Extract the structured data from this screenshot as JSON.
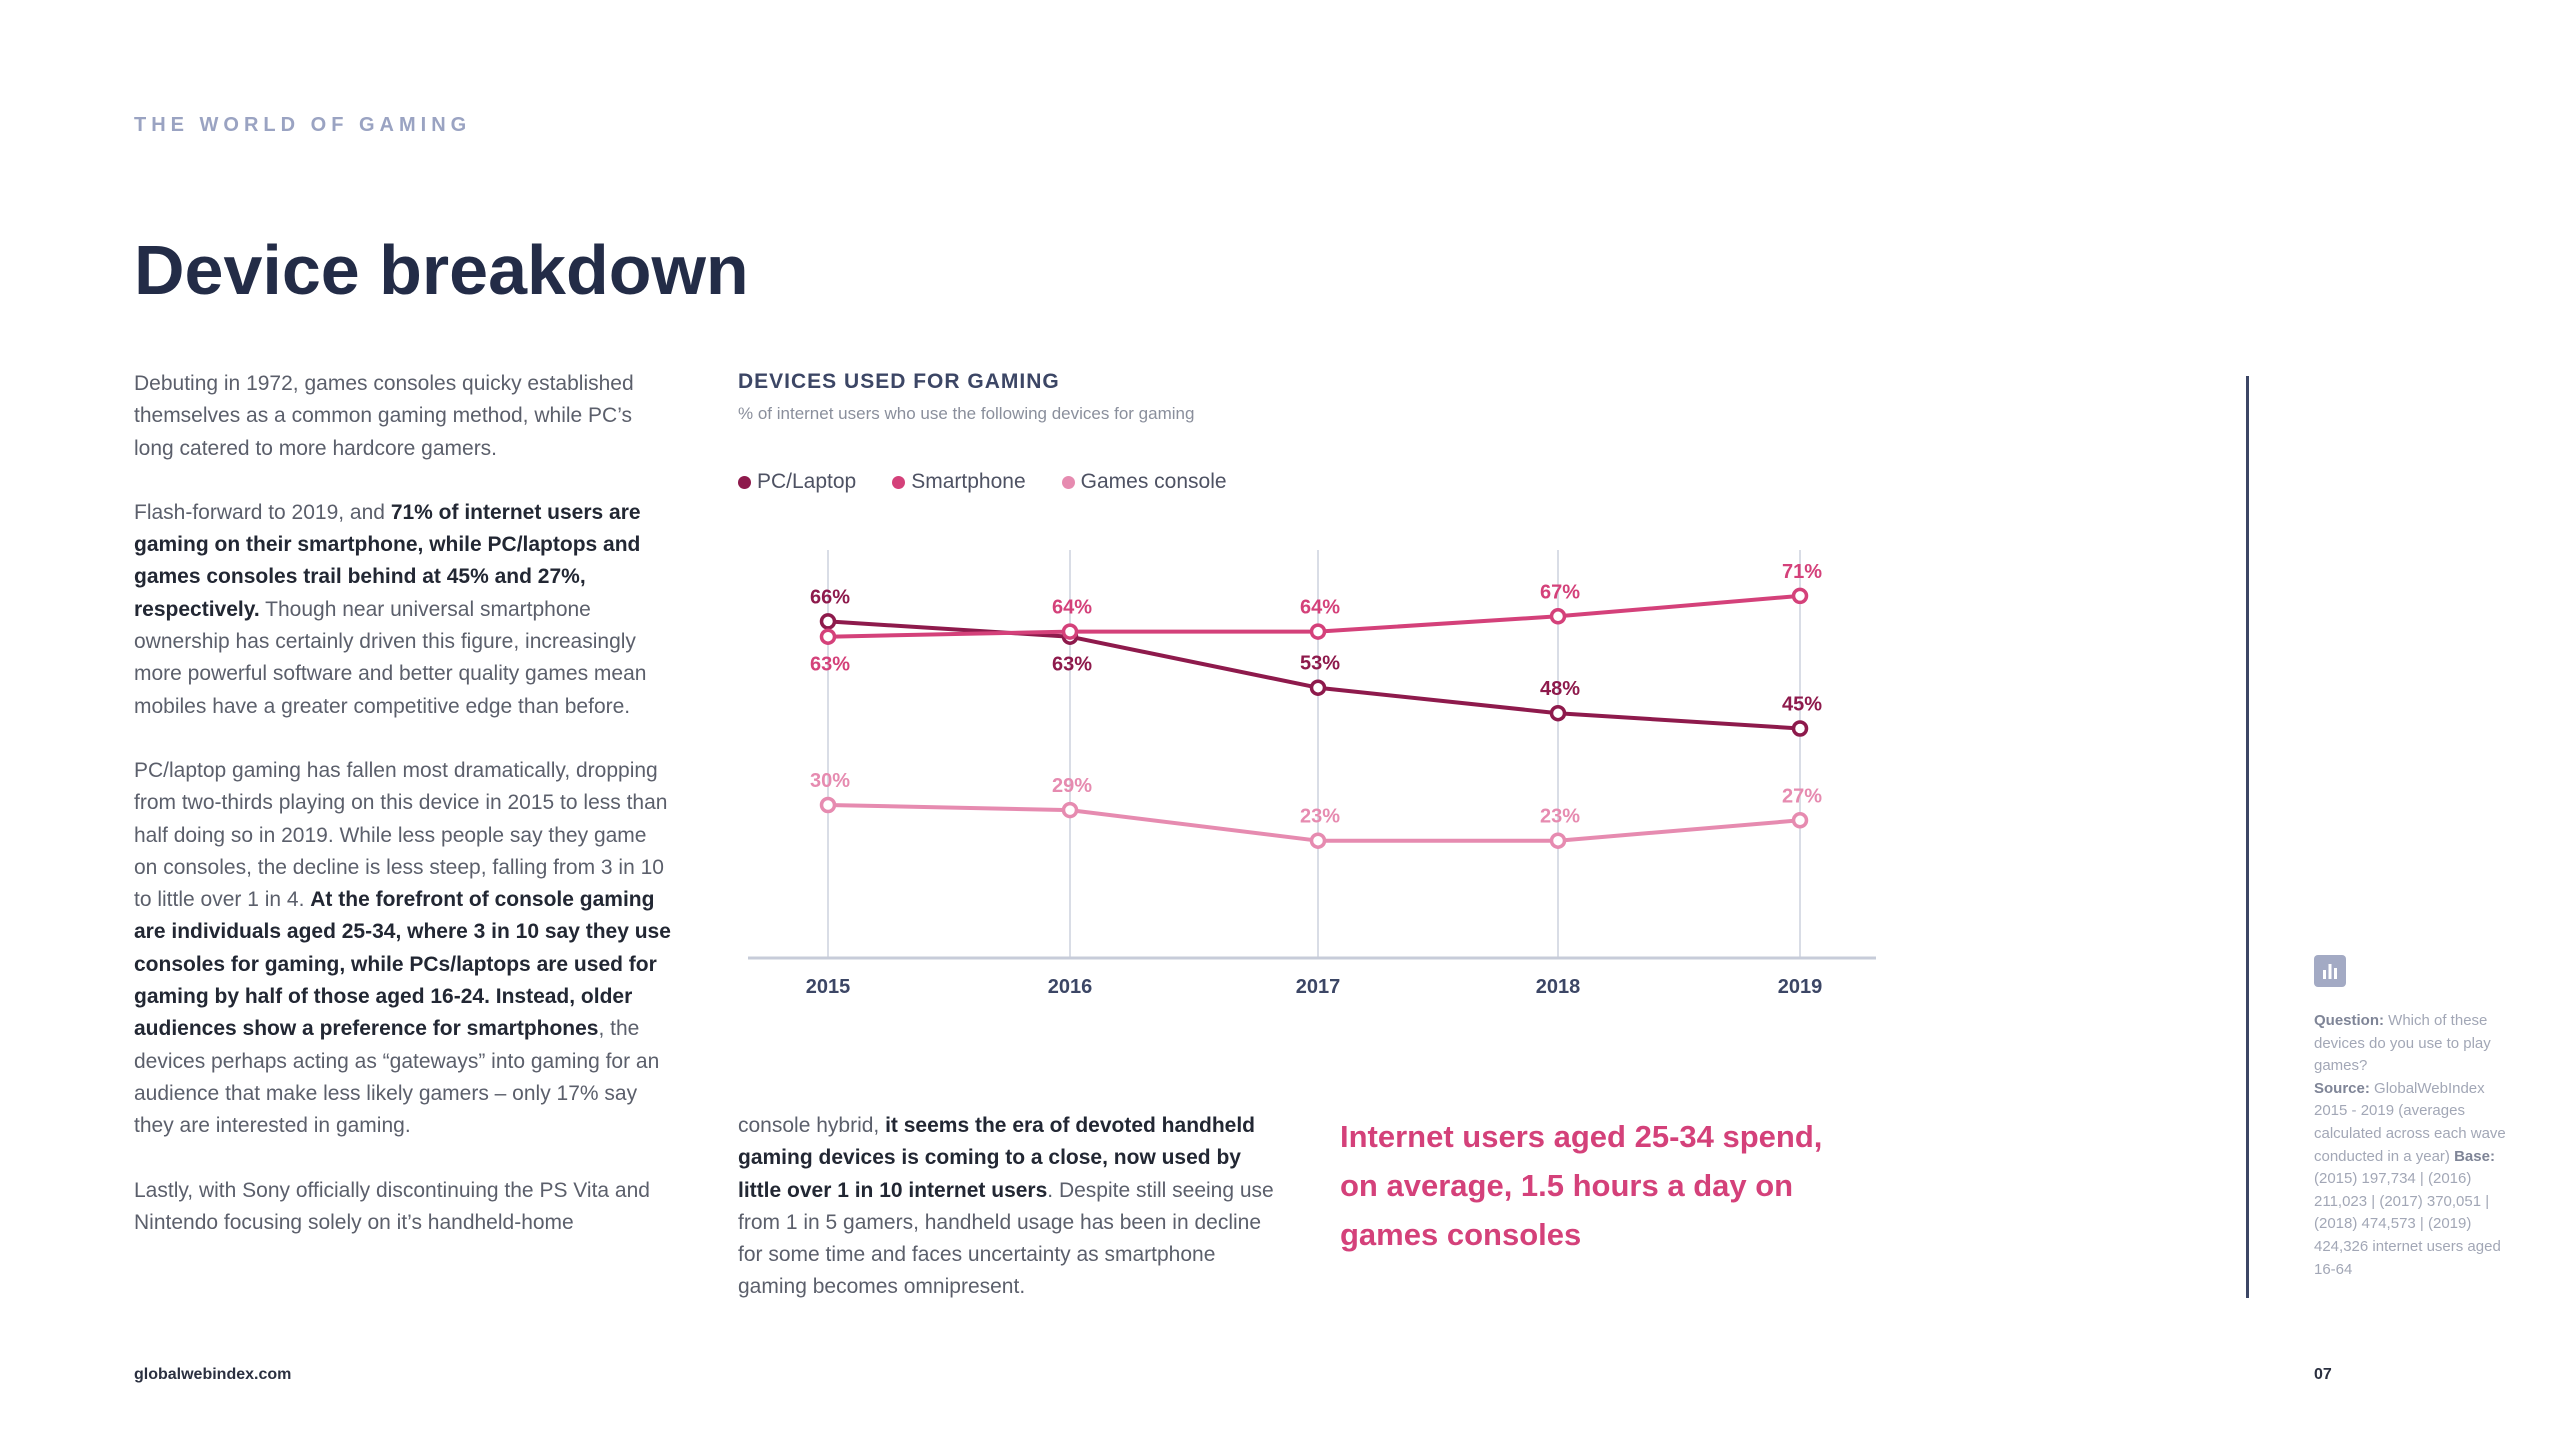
{
  "header": {
    "section": "THE WORLD OF GAMING",
    "title": "Device breakdown"
  },
  "col1": {
    "p1": "Debuting in 1972, games consoles quicky established themselves as a common gaming method, while PC’s long catered to more hardcore gamers.",
    "p2_lead": "Flash-forward to 2019, and ",
    "p2_bold": "71% of internet users are gaming on their smartphone, while PC/laptops and games consoles trail behind at 45% and 27%, respectively.",
    "p2_rest": " Though near universal smartphone ownership has certainly driven this figure, increasingly more powerful software and better quality games mean mobiles have a greater competitive edge than before.",
    "p3_lead": "PC/laptop gaming has fallen most dramatically, dropping from two-thirds playing on this device in 2015 to less than half doing so in 2019. While less people say they game on consoles, the decline is less steep, falling from 3 in 10 to little over 1 in 4. ",
    "p3_bold": "At the forefront of console gaming are individuals aged 25-34, where 3 in 10 say they use consoles for gaming, while PCs/laptops are used for gaming by half of those aged 16-24. Instead, older audiences show a preference for smartphones",
    "p3_rest": ", the devices perhaps acting as “gateways” into gaming for an audience that make less likely gamers – only 17% say they are interested in gaming.",
    "p4": "Lastly, with Sony officially discontinuing the PS Vita and Nintendo focusing solely on it’s handheld-home"
  },
  "col2": {
    "lead": "console hybrid, ",
    "bold": "it seems the era of devoted handheld gaming devices is coming to a close, now used by little over 1 in 10 internet users",
    "rest": ". Despite still seeing use from 1 in 5 gamers, handheld usage has been in decline for some time and faces uncertainty as smartphone gaming becomes omnipresent."
  },
  "callout": "Internet users aged 25-34 spend, on average, 1.5 hours a day on games consoles",
  "notes": {
    "question_label": "Question:",
    "question_text": " Which of these devices do you use to play games?",
    "source_label": "Source:",
    "source_text": " GlobalWebIndex 2015 - 2019 (averages calculated across each wave conducted in a year)",
    "base_label": "Base:",
    "base_text": " (2015) 197,734 | (2016) 211,023 | (2017) 370,051 | (2018) 474,573 | (2019) 424,326 internet users aged 16-64"
  },
  "footer": {
    "url": "globalwebindex.com",
    "page": "07"
  },
  "icons": {
    "stats": "bar-chart-icon"
  },
  "colors": {
    "pc": "#8e1a4c",
    "smartphone": "#d4417a",
    "console": "#e68bb0",
    "grid": "#d9dde6",
    "axis": "#c7ccd9",
    "axis_label": "#3c4665"
  },
  "chart_data": {
    "type": "line",
    "title": "DEVICES USED FOR GAMING",
    "subtitle": "% of internet users who use the following devices for gaming",
    "categories": [
      "2015",
      "2016",
      "2017",
      "2018",
      "2019"
    ],
    "ylim": [
      0,
      80
    ],
    "grid": "vertical",
    "legend_position": "top-left",
    "series": [
      {
        "name": "PC/Laptop",
        "color": "#8e1a4c",
        "values": [
          66,
          63,
          53,
          48,
          45
        ],
        "labels": [
          "66%",
          "63%",
          "53%",
          "48%",
          "45%"
        ]
      },
      {
        "name": "Smartphone",
        "color": "#d4417a",
        "values": [
          63,
          64,
          64,
          67,
          71
        ],
        "labels": [
          "63%",
          "64%",
          "64%",
          "67%",
          "71%"
        ]
      },
      {
        "name": "Games console",
        "color": "#e68bb0",
        "values": [
          30,
          29,
          23,
          23,
          27
        ],
        "labels": [
          "30%",
          "29%",
          "23%",
          "23%",
          "27%"
        ]
      }
    ]
  }
}
